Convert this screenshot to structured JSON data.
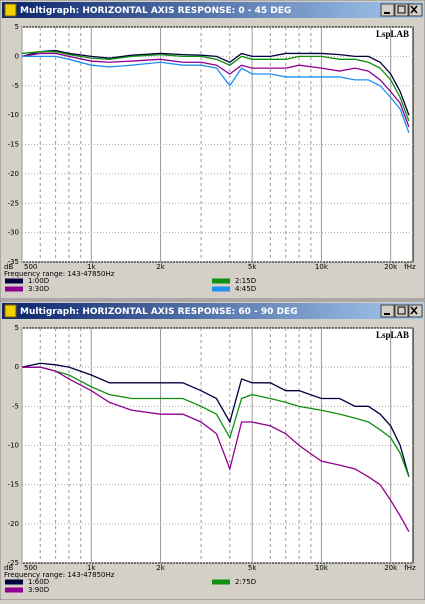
{
  "chart_data": [
    {
      "type": "line",
      "title": "Multigraph: HORIZONTAL AXIS RESPONSE: 0 - 45 DEG",
      "watermark": "LspLAB",
      "x_label": "fHz",
      "y_label": "dB",
      "annotation": "Frequency range: 143-47850Hz",
      "log_x": true,
      "grid": true,
      "xlim": [
        500,
        25000
      ],
      "ylim": [
        -35,
        5
      ],
      "xticks": [
        500,
        {
          "value": 1000,
          "label": "1k"
        },
        {
          "value": 2000,
          "label": "2k"
        },
        {
          "value": 5000,
          "label": "5k"
        },
        {
          "value": 10000,
          "label": "10k"
        },
        {
          "value": 20000,
          "label": "20k"
        }
      ],
      "x_minor_grid": [
        600,
        700,
        800,
        900,
        3000,
        4000,
        6000,
        7000,
        8000,
        9000
      ],
      "yticks": [
        5,
        0,
        -5,
        -10,
        -15,
        -20,
        -25,
        -30,
        -35
      ],
      "x": [
        500,
        600,
        700,
        800,
        1000,
        1200,
        1500,
        2000,
        2500,
        3000,
        3500,
        4000,
        4500,
        5000,
        6000,
        7000,
        8000,
        10000,
        12000,
        14000,
        16000,
        18000,
        20000,
        22000,
        24000
      ],
      "series": [
        {
          "name": "1:00D",
          "color": "#000040",
          "values": [
            0,
            0.8,
            1,
            0.5,
            0,
            -0.3,
            0.2,
            0.5,
            0.3,
            0.2,
            0,
            -1,
            0.5,
            0,
            0,
            0.5,
            0.5,
            0.5,
            0.3,
            0,
            0,
            -1,
            -3,
            -6,
            -10
          ]
        },
        {
          "name": "2:15D",
          "color": "#109010",
          "values": [
            0.5,
            0.8,
            0.8,
            0.3,
            -0.3,
            -0.5,
            0,
            0.3,
            0,
            0,
            -0.5,
            -1.5,
            0,
            -0.5,
            -0.5,
            -0.5,
            0,
            0,
            -0.5,
            -0.5,
            -1,
            -2,
            -4,
            -7,
            -11
          ]
        },
        {
          "name": "3:30D",
          "color": "#900090",
          "values": [
            0,
            0.5,
            0.5,
            0,
            -0.8,
            -1,
            -0.8,
            -0.5,
            -1,
            -1,
            -1.5,
            -3,
            -1.5,
            -2,
            -2,
            -2,
            -1.5,
            -2,
            -2.5,
            -2,
            -2.5,
            -4,
            -6,
            -8,
            -12
          ]
        },
        {
          "name": "4:45D",
          "color": "#2090f0",
          "values": [
            0,
            0,
            0,
            -0.5,
            -1.5,
            -1.8,
            -1.5,
            -1,
            -1.5,
            -1.5,
            -2,
            -5,
            -2,
            -3,
            -3,
            -3.5,
            -3.5,
            -3.5,
            -3.5,
            -4,
            -4,
            -5,
            -7,
            -9,
            -13
          ]
        }
      ]
    },
    {
      "type": "line",
      "title": "Multigraph: HORIZONTAL AXIS RESPONSE: 60 - 90 DEG",
      "watermark": "LspLAB",
      "x_label": "fHz",
      "y_label": "dB",
      "annotation": "Frequency range: 143-47850Hz",
      "log_x": true,
      "grid": true,
      "xlim": [
        500,
        25000
      ],
      "ylim": [
        -25,
        5
      ],
      "xticks": [
        500,
        {
          "value": 1000,
          "label": "1k"
        },
        {
          "value": 2000,
          "label": "2k"
        },
        {
          "value": 5000,
          "label": "5k"
        },
        {
          "value": 10000,
          "label": "10k"
        },
        {
          "value": 20000,
          "label": "20k"
        }
      ],
      "x_minor_grid": [
        600,
        700,
        800,
        900,
        3000,
        4000,
        6000,
        7000,
        8000,
        9000
      ],
      "yticks": [
        5,
        0,
        -5,
        -10,
        -15,
        -20,
        -25
      ],
      "x": [
        500,
        600,
        700,
        800,
        1000,
        1200,
        1500,
        2000,
        2500,
        3000,
        3500,
        4000,
        4500,
        5000,
        6000,
        7000,
        8000,
        10000,
        12000,
        14000,
        16000,
        18000,
        20000,
        22000,
        24000
      ],
      "series": [
        {
          "name": "1:60D",
          "color": "#000040",
          "values": [
            0,
            0.5,
            0.3,
            0,
            -1,
            -2,
            -2,
            -2,
            -2,
            -3,
            -4,
            -7,
            -1.5,
            -2,
            -2,
            -3,
            -3,
            -4,
            -4,
            -5,
            -5,
            -6,
            -7.5,
            -10,
            -14
          ]
        },
        {
          "name": "2:75D",
          "color": "#109010",
          "values": [
            0,
            0,
            -0.5,
            -1,
            -2.5,
            -3.5,
            -4,
            -4,
            -4,
            -5,
            -6,
            -9,
            -4,
            -3.5,
            -4,
            -4.5,
            -5,
            -5.5,
            -6,
            -6.5,
            -7,
            -8,
            -9,
            -11,
            -14
          ]
        },
        {
          "name": "3:90D",
          "color": "#900090",
          "values": [
            0,
            0,
            -0.5,
            -1.5,
            -3,
            -4.5,
            -5.5,
            -6,
            -6,
            -7,
            -8.5,
            -13,
            -7,
            -7,
            -7.5,
            -8.5,
            -10,
            -12,
            -12.5,
            -13,
            -14,
            -15,
            -17,
            -19,
            -21
          ]
        }
      ]
    }
  ]
}
